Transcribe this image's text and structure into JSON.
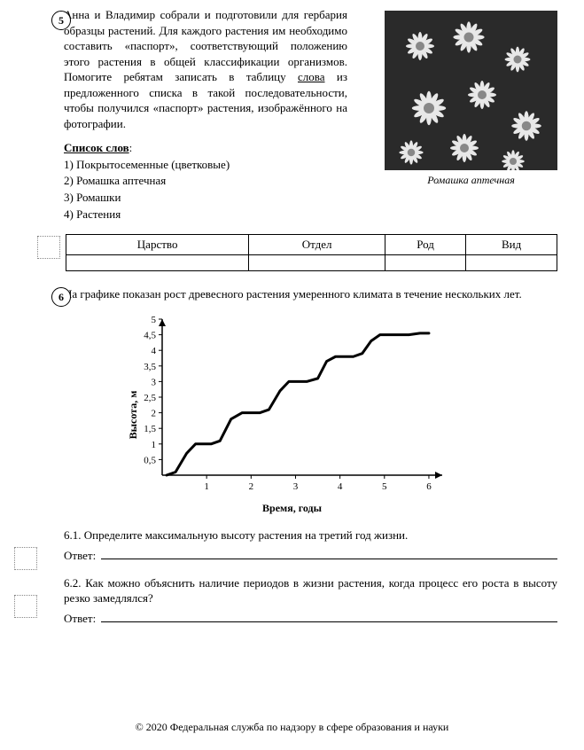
{
  "q5": {
    "number": "5",
    "text_parts": {
      "a": "Анна и Владимир собрали и подготовили для гербария образцы растений. Для каждого растения им необходимо составить «паспорт», соответствующий положению этого растения в общей классификации организмов. Помогите ребятам записать в таблицу ",
      "u": "слова",
      "b": " из предложенного списка в такой последовательности, чтобы получился «паспорт» растения, изображённого на фотографии."
    },
    "caption": "Ромашка аптечная",
    "list_title": "Список слов",
    "list": [
      "1) Покрытосеменные (цветковые)",
      "2) Ромашка аптечная",
      "3) Ромашки",
      "4) Растения"
    ],
    "table_headers": [
      "Царство",
      "Отдел",
      "Род",
      "Вид"
    ]
  },
  "q6": {
    "number": "6",
    "text": "На графике показан рост древесного растения умеренного климата в течение нескольких лет.",
    "chart": {
      "ylabel": "Высота, м",
      "xlabel": "Время, годы",
      "yticks": [
        "0,5",
        "1",
        "1,5",
        "2",
        "2,5",
        "3",
        "3,5",
        "4",
        "4,5",
        "5"
      ],
      "xticks": [
        "1",
        "2",
        "3",
        "4",
        "5",
        "6"
      ],
      "curve": [
        [
          0.1,
          0.0
        ],
        [
          0.3,
          0.1
        ],
        [
          0.55,
          0.7
        ],
        [
          0.75,
          1.0
        ],
        [
          0.95,
          1.0
        ],
        [
          1.1,
          1.0
        ],
        [
          1.3,
          1.1
        ],
        [
          1.55,
          1.8
        ],
        [
          1.8,
          2.0
        ],
        [
          2.05,
          2.0
        ],
        [
          2.2,
          2.0
        ],
        [
          2.4,
          2.1
        ],
        [
          2.65,
          2.7
        ],
        [
          2.85,
          3.0
        ],
        [
          3.1,
          3.0
        ],
        [
          3.25,
          3.0
        ],
        [
          3.5,
          3.1
        ],
        [
          3.7,
          3.65
        ],
        [
          3.9,
          3.8
        ],
        [
          4.1,
          3.8
        ],
        [
          4.3,
          3.8
        ],
        [
          4.5,
          3.9
        ],
        [
          4.7,
          4.3
        ],
        [
          4.9,
          4.5
        ],
        [
          5.15,
          4.5
        ],
        [
          5.35,
          4.5
        ],
        [
          5.55,
          4.5
        ],
        [
          5.8,
          4.55
        ],
        [
          6.0,
          4.55
        ]
      ],
      "line_color": "#000000",
      "line_width": 3,
      "grid_color": "#000000",
      "xmax": 6.3,
      "ymax": 5.0
    },
    "sub1": {
      "num": "6.1.",
      "text": "Определите максимальную высоту растения на третий год жизни.",
      "answer_label": "Ответ:"
    },
    "sub2": {
      "num": "6.2.",
      "text": "Как можно объяснить наличие периодов в жизни растения, когда процесс его роста в высоту резко замедлялся?",
      "answer_label": "Ответ:"
    }
  },
  "footer": "© 2020 Федеральная служба по надзору в сфере образования и науки"
}
